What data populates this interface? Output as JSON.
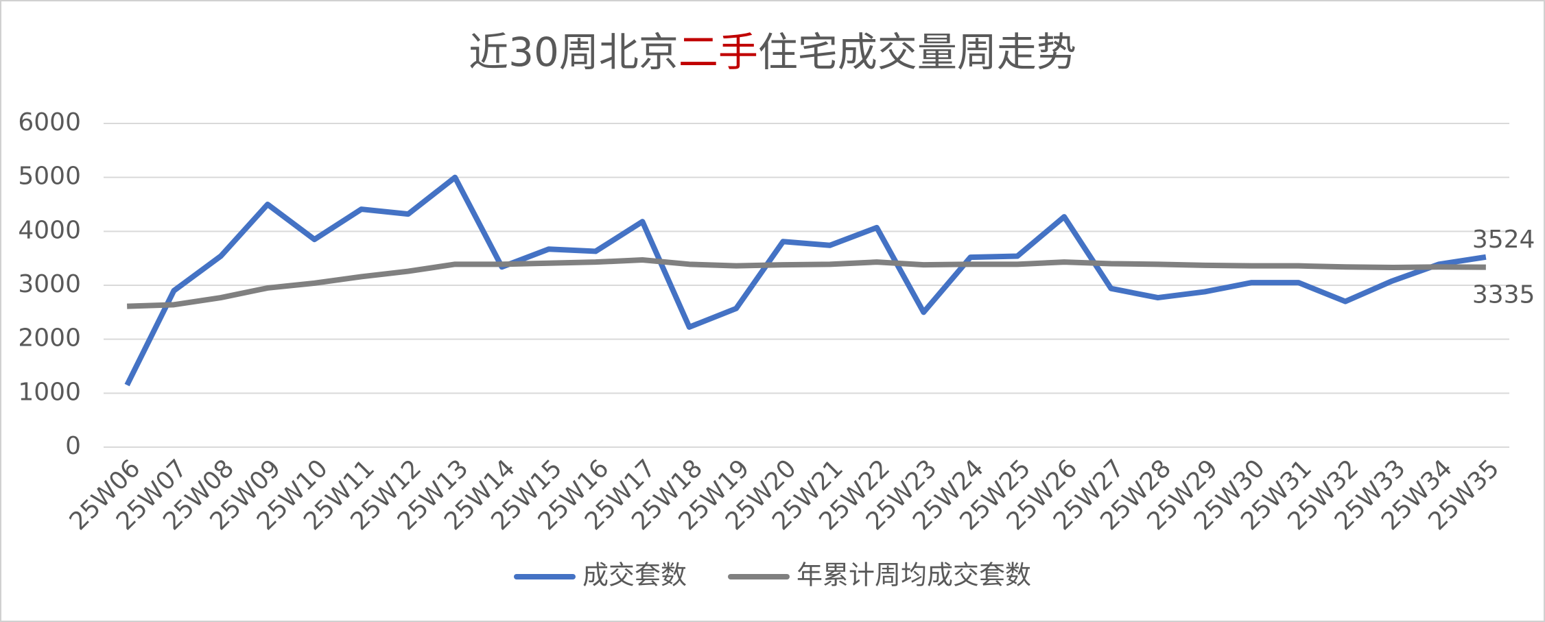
{
  "chart_data": {
    "type": "line",
    "title": [
      {
        "text": "近30周北京"
      },
      {
        "text": "二手",
        "color": "#c00000"
      },
      {
        "text": "住宅成交量周走势"
      }
    ],
    "categories": [
      "25W06",
      "25W07",
      "25W08",
      "25W09",
      "25W10",
      "25W11",
      "25W12",
      "25W13",
      "25W14",
      "25W15",
      "25W16",
      "25W17",
      "25W18",
      "25W19",
      "25W20",
      "25W21",
      "25W22",
      "25W23",
      "25W24",
      "25W25",
      "25W26",
      "25W27",
      "25W28",
      "25W29",
      "25W30",
      "25W31",
      "25W32",
      "25W33",
      "25W34",
      "25W35"
    ],
    "series": [
      {
        "name": "成交套数",
        "color": "#4472c4",
        "values": [
          1150,
          2900,
          3540,
          4500,
          3850,
          4410,
          4320,
          5000,
          3340,
          3670,
          3630,
          4180,
          2225,
          2570,
          3810,
          3740,
          4070,
          2500,
          3520,
          3540,
          4270,
          2940,
          2770,
          2880,
          3050,
          3050,
          2700,
          3080,
          3390,
          3524
        ]
      },
      {
        "name": "年累计周均成交套数",
        "color": "#808080",
        "values": [
          2610,
          2640,
          2770,
          2950,
          3040,
          3160,
          3260,
          3390,
          3390,
          3410,
          3430,
          3470,
          3390,
          3360,
          3380,
          3390,
          3430,
          3380,
          3390,
          3390,
          3430,
          3400,
          3390,
          3370,
          3360,
          3360,
          3340,
          3330,
          3340,
          3335
        ]
      }
    ],
    "ylim": [
      0,
      6000
    ],
    "yticks": [
      0,
      1000,
      2000,
      3000,
      4000,
      5000,
      6000
    ],
    "grid": true,
    "legend": "bottom",
    "data_labels": "last"
  }
}
